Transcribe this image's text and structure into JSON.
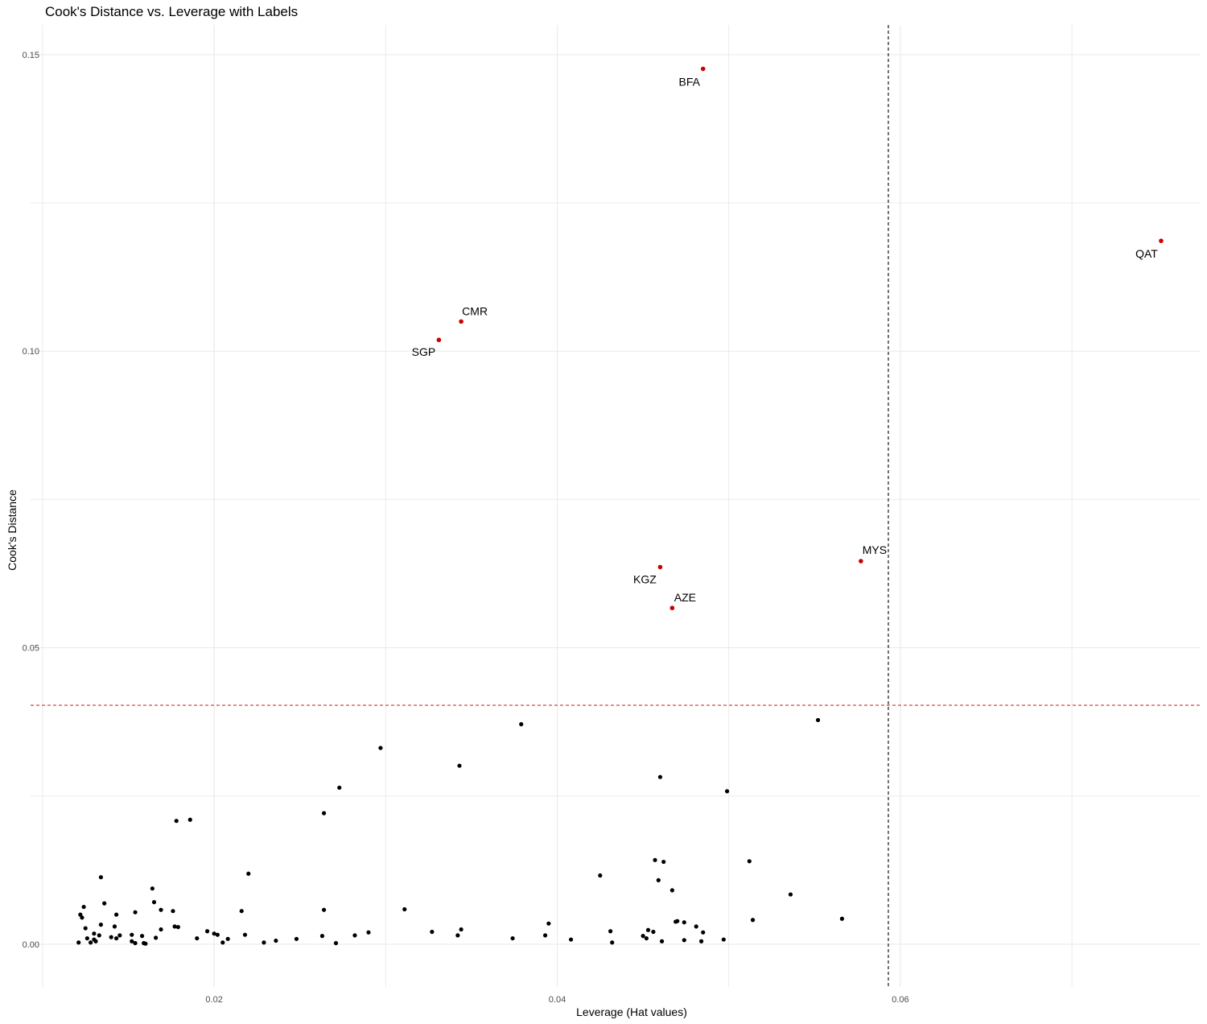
{
  "chart_data": {
    "type": "scatter",
    "title": "Cook's Distance vs. Leverage with Labels",
    "xlabel": "Leverage (Hat values)",
    "ylabel": "Cook's Distance",
    "xlim": [
      0.0093,
      0.0775
    ],
    "ylim": [
      -0.0072,
      0.155
    ],
    "x_ticks": [
      0.02,
      0.04,
      0.06
    ],
    "x_tick_labels": [
      "0.02",
      "0.04",
      "0.06"
    ],
    "y_ticks": [
      0.0,
      0.05,
      0.1,
      0.15
    ],
    "y_tick_labels": [
      "0.00",
      "0.05",
      "0.10",
      "0.15"
    ],
    "grid": true,
    "reference_lines": {
      "cooks_threshold_y": 0.0403,
      "leverage_threshold_x": 0.0593
    },
    "colors": {
      "normal_point": "#000000",
      "influential_point": "#cc0000",
      "horizontal_ref_line": "#cc3333",
      "vertical_ref_line": "#000000",
      "grid": "#ebebeb"
    },
    "labeled_points": [
      {
        "label": "BFA",
        "x": 0.0485,
        "y": 0.1476
      },
      {
        "label": "QAT",
        "x": 0.0752,
        "y": 0.1186
      },
      {
        "label": "CMR",
        "x": 0.0344,
        "y": 0.105
      },
      {
        "label": "SGP",
        "x": 0.0331,
        "y": 0.1019
      },
      {
        "label": "MYS",
        "x": 0.0577,
        "y": 0.0646
      },
      {
        "label": "KGZ",
        "x": 0.046,
        "y": 0.0636
      },
      {
        "label": "AZE",
        "x": 0.0467,
        "y": 0.0567
      }
    ],
    "points": [
      [
        0.0552,
        0.0378
      ],
      [
        0.0379,
        0.0371
      ],
      [
        0.0297,
        0.0331
      ],
      [
        0.0343,
        0.0301
      ],
      [
        0.046,
        0.0282
      ],
      [
        0.0273,
        0.0264
      ],
      [
        0.0499,
        0.0258
      ],
      [
        0.0264,
        0.0221
      ],
      [
        0.0186,
        0.021
      ],
      [
        0.0178,
        0.0208
      ],
      [
        0.0457,
        0.0142
      ],
      [
        0.0462,
        0.0139
      ],
      [
        0.0512,
        0.014
      ],
      [
        0.022,
        0.0119
      ],
      [
        0.0425,
        0.0116
      ],
      [
        0.0134,
        0.0113
      ],
      [
        0.0459,
        0.0108
      ],
      [
        0.0467,
        0.0091
      ],
      [
        0.0164,
        0.0094
      ],
      [
        0.0536,
        0.0084
      ],
      [
        0.0165,
        0.0071
      ],
      [
        0.0136,
        0.0069
      ],
      [
        0.0124,
        0.0063
      ],
      [
        0.0122,
        0.005
      ],
      [
        0.0123,
        0.0045
      ],
      [
        0.0143,
        0.005
      ],
      [
        0.0154,
        0.0054
      ],
      [
        0.0169,
        0.0058
      ],
      [
        0.0176,
        0.0056
      ],
      [
        0.0264,
        0.0058
      ],
      [
        0.0216,
        0.0056
      ],
      [
        0.0311,
        0.0059
      ],
      [
        0.0395,
        0.0035
      ],
      [
        0.0514,
        0.0041
      ],
      [
        0.0566,
        0.0043
      ],
      [
        0.047,
        0.0039
      ],
      [
        0.0474,
        0.0037
      ],
      [
        0.0134,
        0.0033
      ],
      [
        0.0142,
        0.003
      ],
      [
        0.0177,
        0.003
      ],
      [
        0.0179,
        0.0029
      ],
      [
        0.0125,
        0.0027
      ],
      [
        0.0169,
        0.0025
      ],
      [
        0.013,
        0.0018
      ],
      [
        0.0133,
        0.0015
      ],
      [
        0.0145,
        0.0015
      ],
      [
        0.0152,
        0.0016
      ],
      [
        0.0158,
        0.0014
      ],
      [
        0.014,
        0.0012
      ],
      [
        0.0143,
        0.001
      ],
      [
        0.0166,
        0.0011
      ],
      [
        0.0126,
        0.001
      ],
      [
        0.013,
        0.0008
      ],
      [
        0.0131,
        0.0005
      ],
      [
        0.0121,
        0.0003
      ],
      [
        0.0128,
        0.0003
      ],
      [
        0.0152,
        0.0005
      ],
      [
        0.0154,
        0.0002
      ],
      [
        0.0159,
        0.0002
      ],
      [
        0.016,
        0.0001
      ],
      [
        0.019,
        0.001
      ],
      [
        0.0196,
        0.0022
      ],
      [
        0.02,
        0.0018
      ],
      [
        0.0202,
        0.0016
      ],
      [
        0.0205,
        0.0003
      ],
      [
        0.0208,
        0.0009
      ],
      [
        0.0218,
        0.0016
      ],
      [
        0.0229,
        0.0003
      ],
      [
        0.0236,
        0.0006
      ],
      [
        0.0248,
        0.0009
      ],
      [
        0.0263,
        0.0014
      ],
      [
        0.0271,
        0.0002
      ],
      [
        0.0282,
        0.0015
      ],
      [
        0.029,
        0.002
      ],
      [
        0.0327,
        0.0021
      ],
      [
        0.0342,
        0.0015
      ],
      [
        0.0344,
        0.0025
      ],
      [
        0.0374,
        0.001
      ],
      [
        0.0393,
        0.0015
      ],
      [
        0.0408,
        0.0008
      ],
      [
        0.0431,
        0.0022
      ],
      [
        0.0432,
        0.0003
      ],
      [
        0.045,
        0.0014
      ],
      [
        0.0452,
        0.001
      ],
      [
        0.0453,
        0.0024
      ],
      [
        0.0456,
        0.0021
      ],
      [
        0.0461,
        0.0005
      ],
      [
        0.0469,
        0.0038
      ],
      [
        0.0474,
        0.0007
      ],
      [
        0.0481,
        0.003
      ],
      [
        0.0484,
        0.0005
      ],
      [
        0.0485,
        0.002
      ],
      [
        0.0497,
        0.0008
      ]
    ]
  }
}
